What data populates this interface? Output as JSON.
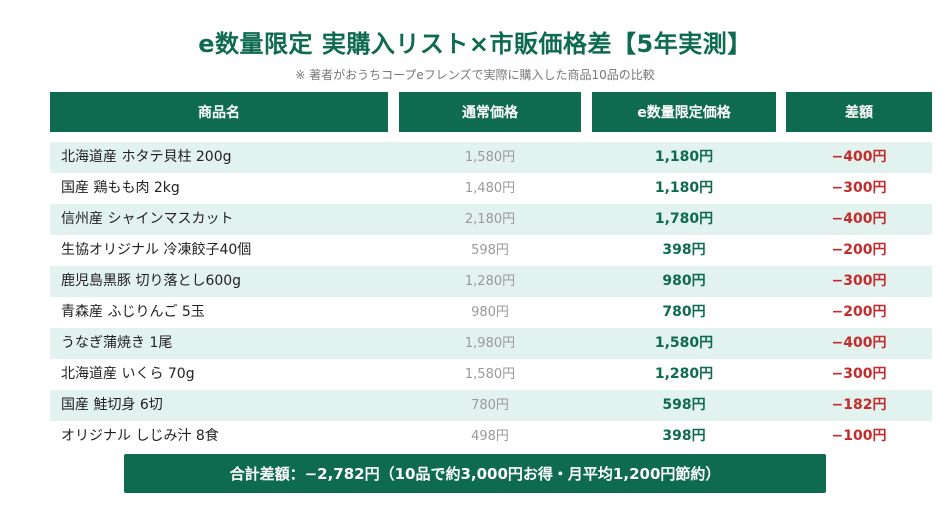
{
  "title": "e数量限定 実購入リスト×市販価格差【5年実測】",
  "subtitle": "※ 著者がおうちコープeフレンズで実際に購入した商品10品の比較",
  "columns": {
    "name": "商品名",
    "regular": "通常価格",
    "limited": "e数量限定価格",
    "diff": "差額"
  },
  "rows": [
    {
      "name": "北海道産 ホタテ貝柱 200g",
      "regular": "1,580円",
      "limited": "1,180円",
      "diff": "−400円"
    },
    {
      "name": "国産 鶏もも肉 2kg",
      "regular": "1,480円",
      "limited": "1,180円",
      "diff": "−300円"
    },
    {
      "name": "信州産 シャインマスカット",
      "regular": "2,180円",
      "limited": "1,780円",
      "diff": "−400円"
    },
    {
      "name": "生協オリジナル 冷凍餃子40個",
      "regular": "598円",
      "limited": "398円",
      "diff": "−200円"
    },
    {
      "name": "鹿児島黒豚 切り落とし600g",
      "regular": "1,280円",
      "limited": "980円",
      "diff": "−300円"
    },
    {
      "name": "青森産 ふじりんご 5玉",
      "regular": "980円",
      "limited": "780円",
      "diff": "−200円"
    },
    {
      "name": "うなぎ蒲焼き 1尾",
      "regular": "1,980円",
      "limited": "1,580円",
      "diff": "−400円"
    },
    {
      "name": "北海道産 いくら 70g",
      "regular": "1,580円",
      "limited": "1,280円",
      "diff": "−300円"
    },
    {
      "name": "国産 鮭切身 6切",
      "regular": "780円",
      "limited": "598円",
      "diff": "−182円"
    },
    {
      "name": "オリジナル しじみ汁 8食",
      "regular": "498円",
      "limited": "398円",
      "diff": "−100円"
    }
  ],
  "total": "合計差額：−2,782円（10品で約3,000円お得・月平均1,200円節約）",
  "colors": {
    "accent": "#0f6b50",
    "row_shade": "#e2f2ef",
    "diff_red": "#c42b2b",
    "regular_gray": "#9a9a9a"
  }
}
